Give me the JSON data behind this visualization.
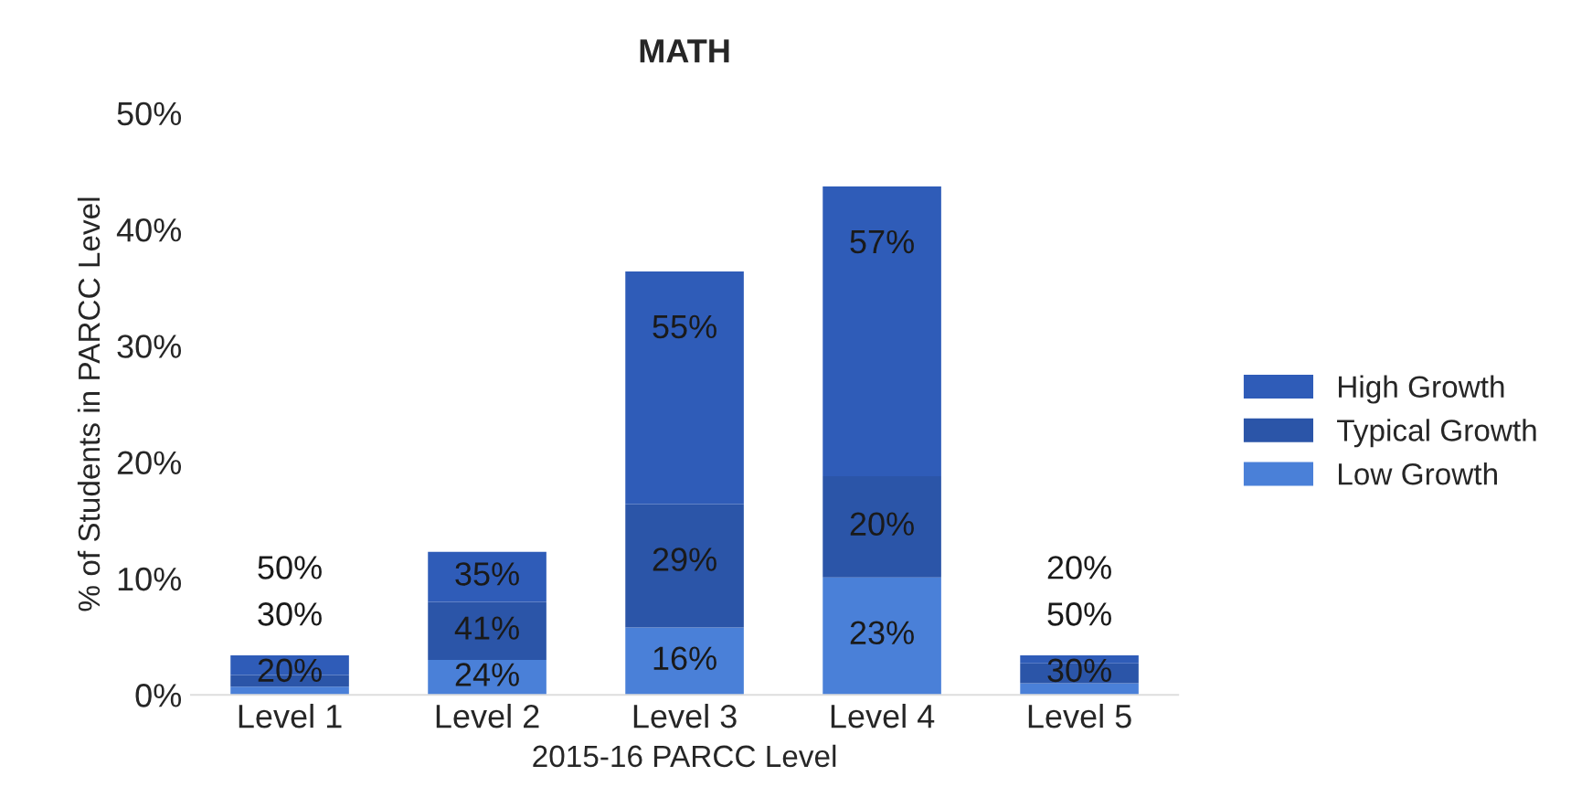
{
  "chart_data": {
    "type": "bar",
    "title": "MATH",
    "xlabel": "2015-16 PARCC Level",
    "ylabel": "% of Students in PARCC Level",
    "categories": [
      "Level 1",
      "Level 2",
      "Level 3",
      "Level 4",
      "Level 5"
    ],
    "stacked": true,
    "series": [
      {
        "name": "Low Growth",
        "color": "#4a80d8",
        "values": [
          0.7,
          3.0,
          5.8,
          10.1,
          1.0
        ]
      },
      {
        "name": "Typical Growth",
        "color": "#2b55a8",
        "values": [
          1.0,
          5.0,
          10.6,
          8.7,
          1.7
        ]
      },
      {
        "name": "High Growth",
        "color": "#2f5cb8",
        "values": [
          1.7,
          4.3,
          20.0,
          24.9,
          0.7
        ]
      }
    ],
    "annotations": [
      {
        "text": "50%",
        "x": "Level 1",
        "y": 3.4
      },
      {
        "text": "30%",
        "x": "Level 1",
        "y": 1.7
      },
      {
        "text": "20%",
        "x": "Level 1",
        "y": 0.7
      },
      {
        "text": "35%",
        "x": "Level 2",
        "y": 12.3
      },
      {
        "text": "41%",
        "x": "Level 2",
        "y": 8.0
      },
      {
        "text": "24%",
        "x": "Level 2",
        "y": 3.0
      },
      {
        "text": "55%",
        "x": "Level 3",
        "y": 36.4
      },
      {
        "text": "29%",
        "x": "Level 3",
        "y": 16.4
      },
      {
        "text": "16%",
        "x": "Level 3",
        "y": 5.8
      },
      {
        "text": "57%",
        "x": "Level 4",
        "y": 43.7
      },
      {
        "text": "20%",
        "x": "Level 4",
        "y": 18.8
      },
      {
        "text": "23%",
        "x": "Level 4",
        "y": 10.1
      },
      {
        "text": "20%",
        "x": "Level 5",
        "y": 3.4
      },
      {
        "text": "50%",
        "x": "Level 5",
        "y": 2.7
      },
      {
        "text": "30%",
        "x": "Level 5",
        "y": 1.0
      }
    ],
    "ylim": [
      0,
      50
    ],
    "yticks": [
      {
        "value": 0,
        "label": "0%"
      },
      {
        "value": 10,
        "label": "10%"
      },
      {
        "value": 20,
        "label": "20%"
      },
      {
        "value": 30,
        "label": "30%"
      },
      {
        "value": 40,
        "label": "40%"
      },
      {
        "value": 50,
        "label": "50%"
      }
    ],
    "grid": false,
    "legend": "right"
  }
}
